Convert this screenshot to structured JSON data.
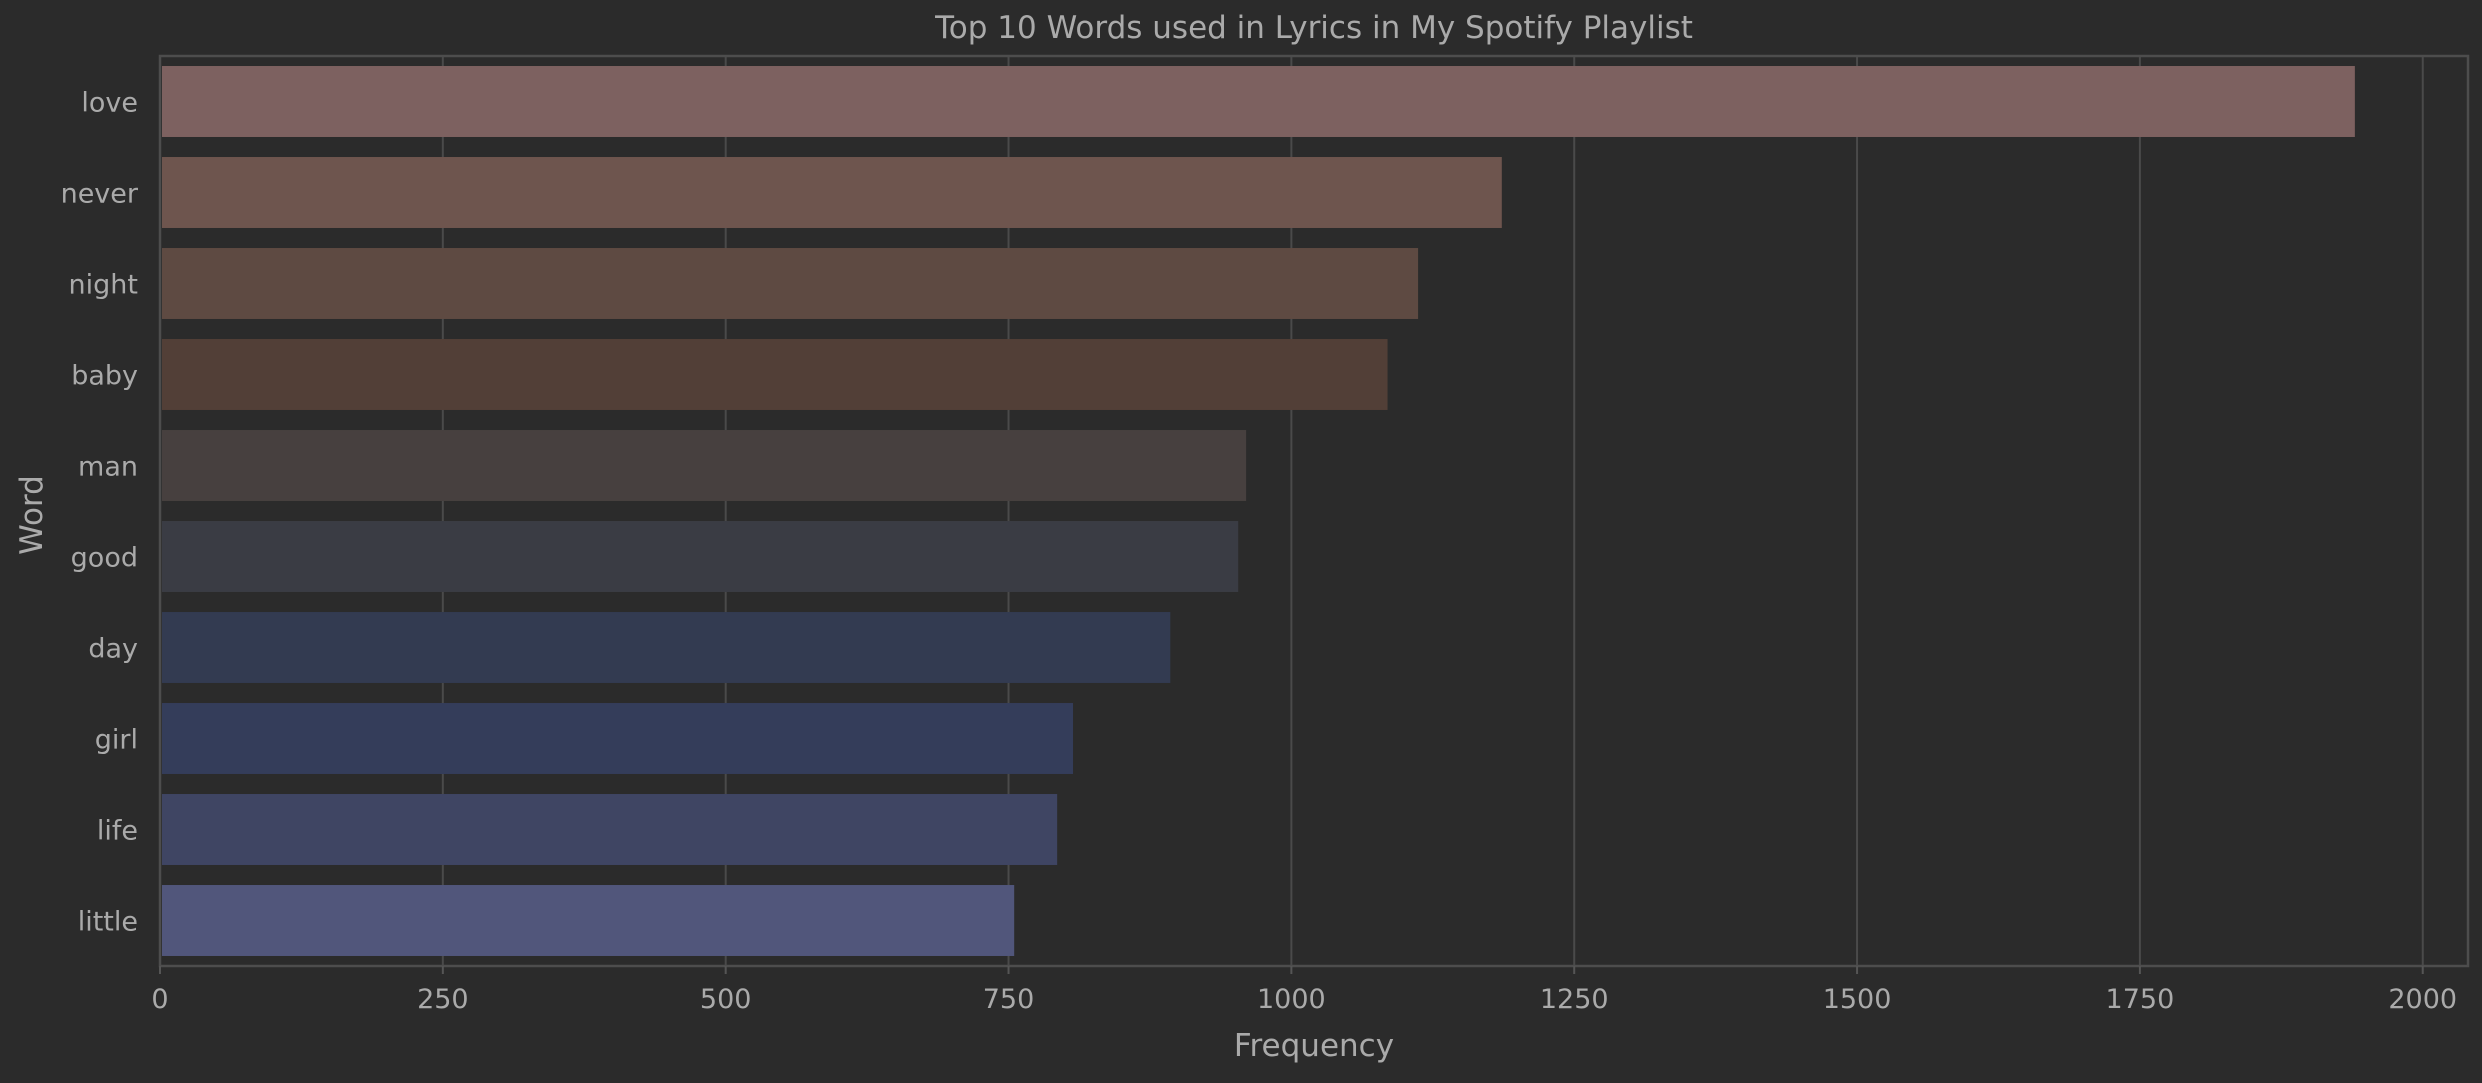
{
  "chart_data": {
    "type": "bar",
    "orientation": "horizontal",
    "title": "Top 10 Words used in Lyrics in My Spotify Playlist",
    "xlabel": "Frequency",
    "ylabel": "Word",
    "categories": [
      "love",
      "never",
      "night",
      "baby",
      "man",
      "good",
      "day",
      "girl",
      "life",
      "little"
    ],
    "values": [
      1940,
      1186,
      1112,
      1085,
      960,
      953,
      893,
      807,
      793,
      755
    ],
    "xlim": [
      0,
      2040
    ],
    "xticks": [
      0,
      250,
      500,
      750,
      1000,
      1250,
      1500,
      1750,
      2000
    ],
    "xtick_labels": [
      "0",
      "250",
      "500",
      "750",
      "1000",
      "1250",
      "1500",
      "1750",
      "2000"
    ],
    "grid": true,
    "colors": [
      "#7d6160",
      "#6e554e",
      "#5e4a42",
      "#523f37",
      "#47403f",
      "#3a3c44",
      "#333b51",
      "#343d5a",
      "#3f4563",
      "#51567b"
    ],
    "background": "#2b2b2b"
  }
}
